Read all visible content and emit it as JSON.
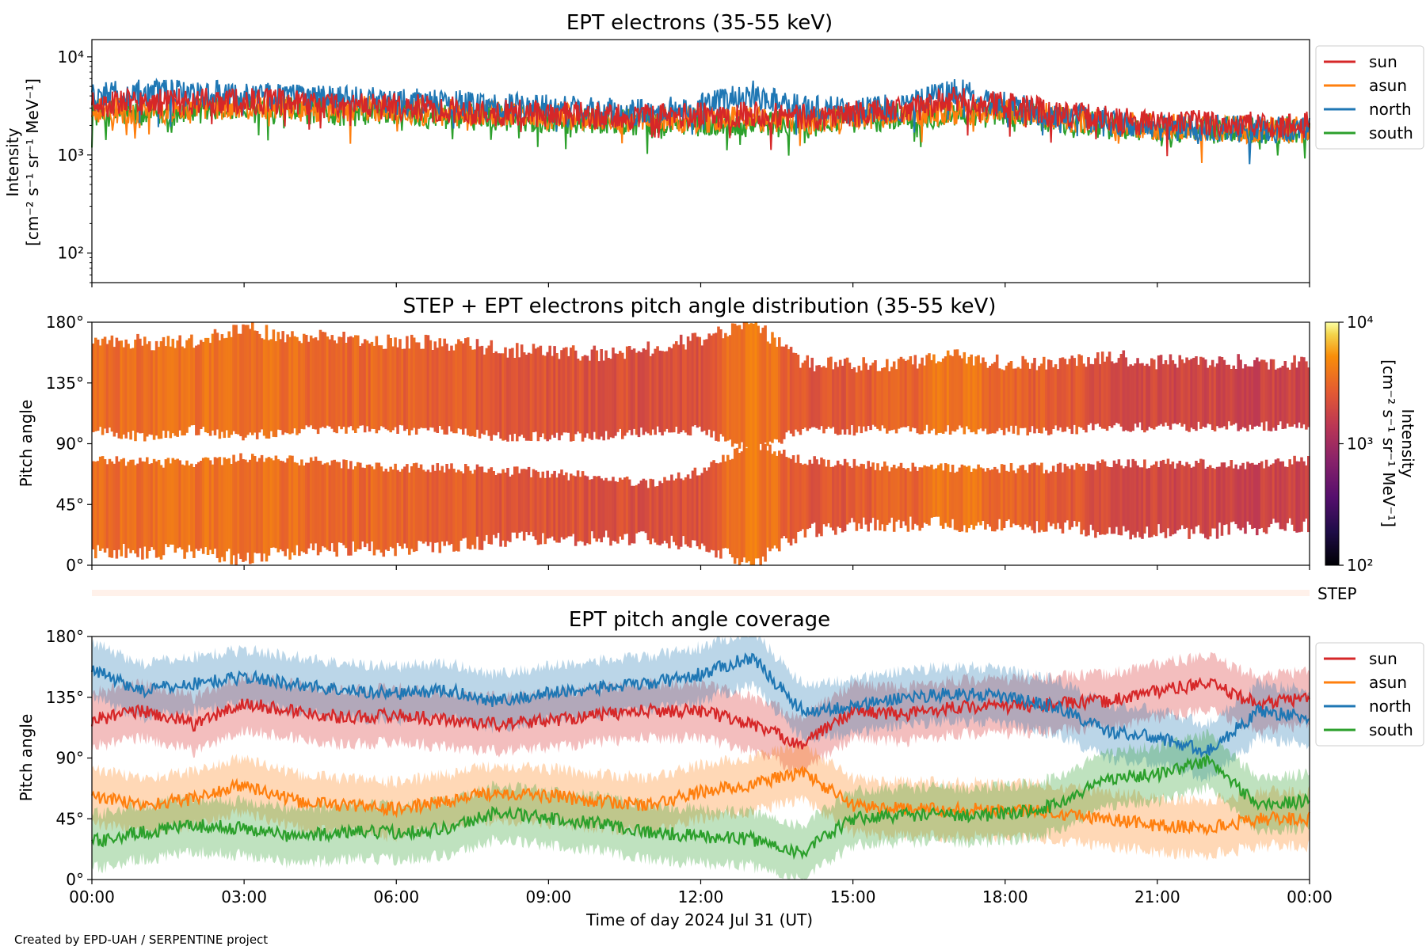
{
  "footer": {
    "credit": "Created by EPD-UAH / SERPENTINE project"
  },
  "colors": {
    "sun": "#d62728",
    "asun": "#ff7f0e",
    "north": "#1f77b4",
    "south": "#2ca02c"
  },
  "chart_data": [
    {
      "type": "line",
      "title": "EPT electrons (35-55 keV)",
      "ylabel_line1": "Intensity",
      "ylabel_line2": "[cm⁻² s⁻¹ sr⁻¹ MeV⁻¹]",
      "yscale": "log",
      "ylim": [
        50,
        15000
      ],
      "yticks": [
        {
          "value": 100,
          "label": "10²"
        },
        {
          "value": 1000,
          "label": "10³"
        },
        {
          "value": 10000,
          "label": "10⁴"
        }
      ],
      "legend_position": "outside-right-top",
      "x_hours": [
        0,
        1,
        2,
        3,
        4,
        5,
        6,
        7,
        8,
        9,
        10,
        11,
        12,
        13,
        14,
        15,
        16,
        17,
        18,
        19,
        20,
        21,
        22,
        23,
        24
      ],
      "series": [
        {
          "name": "sun",
          "color": "#d62728",
          "values": [
            3300,
            3400,
            3500,
            3600,
            3300,
            3200,
            3100,
            2900,
            2700,
            2600,
            2500,
            2400,
            2500,
            2700,
            2400,
            2600,
            2800,
            3600,
            3200,
            2700,
            2300,
            2100,
            2100,
            2000,
            2000
          ]
        },
        {
          "name": "asun",
          "color": "#ff7f0e",
          "values": [
            2900,
            2800,
            3000,
            3200,
            3000,
            2900,
            2900,
            2700,
            2600,
            2500,
            2400,
            2300,
            2300,
            2400,
            2200,
            2500,
            2600,
            2700,
            2700,
            2400,
            2100,
            1900,
            1900,
            1800,
            1800
          ]
        },
        {
          "name": "north",
          "color": "#1f77b4",
          "values": [
            4200,
            4300,
            4200,
            4100,
            3900,
            3700,
            3500,
            3400,
            3200,
            3000,
            2800,
            2700,
            3100,
            4200,
            3000,
            2800,
            3100,
            4500,
            3200,
            2500,
            2100,
            1900,
            1900,
            1800,
            1800
          ]
        },
        {
          "name": "south",
          "color": "#2ca02c",
          "values": [
            2700,
            2600,
            2800,
            2900,
            2800,
            2700,
            2700,
            2500,
            2400,
            2300,
            2200,
            2100,
            2100,
            2100,
            2000,
            2300,
            2500,
            2600,
            2600,
            2300,
            2000,
            1900,
            1800,
            1800,
            1800
          ]
        }
      ]
    },
    {
      "type": "heatmap",
      "title": "STEP + EPT electrons pitch angle distribution (35-55 keV)",
      "ylabel": "Pitch angle",
      "ylim": [
        0,
        180
      ],
      "yticks": [
        {
          "value": 0,
          "label": "0°"
        },
        {
          "value": 45,
          "label": "45°"
        },
        {
          "value": 90,
          "label": "90°"
        },
        {
          "value": 135,
          "label": "135°"
        },
        {
          "value": 180,
          "label": "180°"
        }
      ],
      "colorbar": {
        "label_line1": "Intensity",
        "label_line2": "[cm⁻² s⁻¹ sr⁻¹ MeV⁻¹]",
        "scale": "log",
        "range": [
          100,
          10000
        ],
        "ticks": [
          {
            "value": 100,
            "label": "10²"
          },
          {
            "value": 1000,
            "label": "10³"
          },
          {
            "value": 10000,
            "label": "10⁴"
          }
        ],
        "colormap": "inferno"
      },
      "step_label": "STEP",
      "x_hours": [
        0,
        1,
        2,
        3,
        4,
        5,
        6,
        7,
        8,
        9,
        10,
        11,
        12,
        13,
        14,
        15,
        16,
        17,
        18,
        19,
        20,
        21,
        22,
        23,
        24
      ],
      "upper_band_min": [
        100,
        95,
        100,
        95,
        100,
        100,
        100,
        100,
        95,
        95,
        95,
        100,
        100,
        85,
        100,
        100,
        100,
        100,
        100,
        100,
        102,
        102,
        103,
        103,
        103
      ],
      "upper_band_max": [
        168,
        165,
        165,
        175,
        170,
        168,
        165,
        165,
        160,
        158,
        157,
        160,
        168,
        180,
        150,
        148,
        150,
        155,
        150,
        150,
        155,
        150,
        152,
        150,
        150
      ],
      "lower_band_min": [
        10,
        10,
        10,
        5,
        10,
        12,
        12,
        15,
        18,
        20,
        20,
        20,
        15,
        0,
        25,
        30,
        30,
        30,
        30,
        28,
        25,
        25,
        25,
        28,
        30
      ],
      "lower_band_max": [
        78,
        77,
        75,
        80,
        78,
        75,
        72,
        72,
        70,
        68,
        65,
        60,
        70,
        90,
        78,
        75,
        72,
        72,
        72,
        72,
        75,
        75,
        75,
        75,
        78
      ],
      "intensity": [
        3400,
        3400,
        3500,
        3700,
        3300,
        3200,
        3000,
        2800,
        2500,
        2400,
        2300,
        2200,
        2300,
        4200,
        2400,
        2600,
        2900,
        4000,
        3100,
        2600,
        2200,
        1900,
        1900,
        1800,
        1800
      ]
    },
    {
      "type": "line",
      "title": "EPT pitch angle coverage",
      "ylabel": "Pitch angle",
      "xlabel": "Time of day 2024 Jul 31 (UT)",
      "ylim": [
        0,
        180
      ],
      "yticks": [
        {
          "value": 0,
          "label": "0°"
        },
        {
          "value": 45,
          "label": "45°"
        },
        {
          "value": 90,
          "label": "90°"
        },
        {
          "value": 135,
          "label": "135°"
        },
        {
          "value": 180,
          "label": "180°"
        }
      ],
      "xticks": [
        {
          "value": 0,
          "label": "00:00"
        },
        {
          "value": 3,
          "label": "03:00"
        },
        {
          "value": 6,
          "label": "06:00"
        },
        {
          "value": 9,
          "label": "09:00"
        },
        {
          "value": 12,
          "label": "12:00"
        },
        {
          "value": 15,
          "label": "15:00"
        },
        {
          "value": 18,
          "label": "18:00"
        },
        {
          "value": 21,
          "label": "21:00"
        },
        {
          "value": 24,
          "label": "00:00"
        }
      ],
      "legend_position": "outside-right-top",
      "x_hours": [
        0,
        1,
        2,
        3,
        4,
        5,
        6,
        7,
        8,
        9,
        10,
        11,
        12,
        13,
        14,
        15,
        16,
        17,
        18,
        19,
        20,
        21,
        22,
        23,
        24
      ],
      "band_halfwidth": 20,
      "series": [
        {
          "name": "sun",
          "color": "#d62728",
          "values": [
            118,
            125,
            115,
            130,
            125,
            120,
            122,
            118,
            115,
            118,
            122,
            125,
            125,
            115,
            100,
            125,
            122,
            128,
            128,
            130,
            132,
            140,
            145,
            130,
            135
          ]
        },
        {
          "name": "asun",
          "color": "#ff7f0e",
          "values": [
            62,
            55,
            60,
            70,
            58,
            55,
            52,
            58,
            65,
            62,
            58,
            55,
            65,
            70,
            80,
            55,
            52,
            52,
            52,
            50,
            45,
            40,
            38,
            45,
            45
          ]
        },
        {
          "name": "north",
          "color": "#1f77b4",
          "values": [
            155,
            140,
            145,
            150,
            145,
            140,
            138,
            140,
            132,
            138,
            142,
            145,
            152,
            165,
            125,
            128,
            135,
            138,
            135,
            128,
            110,
            105,
            95,
            125,
            120
          ]
        },
        {
          "name": "south",
          "color": "#2ca02c",
          "values": [
            28,
            35,
            40,
            38,
            32,
            35,
            35,
            38,
            50,
            45,
            42,
            35,
            32,
            30,
            20,
            45,
            48,
            48,
            48,
            55,
            75,
            78,
            88,
            55,
            58
          ]
        }
      ]
    }
  ]
}
